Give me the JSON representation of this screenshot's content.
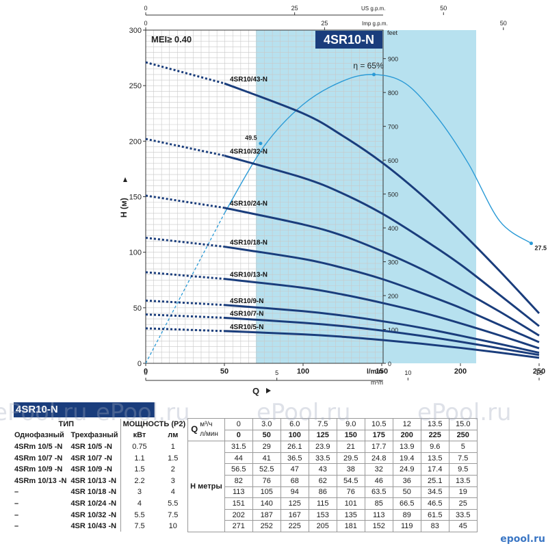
{
  "chart_data": {
    "type": "line",
    "model": "4SR10-N",
    "mei": "MEI≥ 0.40",
    "ylabel": "H (м)",
    "xlabel": "Q",
    "x_unit_lmin": "l/min",
    "x_unit_m3h": "m³/h",
    "top_unit_us": "US g.p.m.",
    "top_unit_imp": "Imp g.p.m.",
    "right_unit": "feet",
    "xlim": [
      0,
      262
    ],
    "ylim": [
      0,
      300
    ],
    "x_ticks": [
      0,
      50,
      100,
      150,
      200,
      250
    ],
    "y_ticks": [
      0,
      50,
      100,
      150,
      200,
      250,
      300
    ],
    "m3h_ticks": [
      0,
      5,
      10,
      15
    ],
    "us_ticks": [
      0,
      25,
      50
    ],
    "imp_ticks": [
      0,
      25,
      50
    ],
    "feet_ticks": [
      0,
      100,
      200,
      300,
      400,
      500,
      600,
      700,
      800,
      900
    ],
    "recommended_range": [
      70,
      210
    ],
    "x": [
      50,
      100,
      125,
      150,
      175,
      200,
      225,
      250
    ],
    "series": [
      {
        "name": "4SR10/43-N",
        "shutoff": 271,
        "values": [
          252,
          225,
          205,
          181,
          152,
          119,
          83,
          45
        ]
      },
      {
        "name": "4SR10/32-N",
        "shutoff": 202,
        "values": [
          187,
          167,
          153,
          135,
          113,
          89,
          61.5,
          33.5
        ]
      },
      {
        "name": "4SR10/24-N",
        "shutoff": 151,
        "values": [
          140,
          125,
          115,
          101,
          85,
          66.5,
          46.5,
          25
        ]
      },
      {
        "name": "4SR10/18-N",
        "shutoff": 113,
        "values": [
          105,
          94,
          86,
          76,
          63.5,
          50,
          34.5,
          19
        ]
      },
      {
        "name": "4SR10/13-N",
        "shutoff": 82,
        "values": [
          76,
          68,
          62,
          54.5,
          46,
          36,
          25.1,
          13.5
        ]
      },
      {
        "name": "4SR10/9-N",
        "shutoff": 56.5,
        "values": [
          52.5,
          47,
          43,
          38,
          32,
          24.9,
          17.4,
          9.5
        ]
      },
      {
        "name": "4SR10/7-N",
        "shutoff": 44,
        "values": [
          41,
          36.5,
          33.5,
          29.5,
          24.8,
          19.4,
          13.5,
          7.5
        ]
      },
      {
        "name": "4SR10/5-N",
        "shutoff": 31.5,
        "values": [
          29,
          26.1,
          23.9,
          21,
          17.7,
          13.9,
          9.6,
          5
        ]
      }
    ],
    "efficiency": {
      "label": "η = 65%",
      "start_label": "49.5",
      "end_label": "27.5",
      "x": [
        0,
        25,
        50,
        75,
        100,
        125,
        145,
        165,
        185,
        205,
        225,
        245
      ],
      "values": [
        0,
        65,
        135,
        195,
        233,
        254,
        260,
        252,
        222,
        180,
        128,
        108
      ]
    }
  },
  "table": {
    "title": "4SR10-N",
    "tip": "ТИП",
    "single_phase": "Однофазный",
    "three_phase": "Трехфазный",
    "power": "МОЩНОСТЬ (P2)",
    "kw": "кВт",
    "hp": "лм",
    "q": "Q",
    "q_m3h": "м³/ч",
    "q_lmin": "л/мин",
    "h_label": "H метры",
    "flow_m3h": [
      "0",
      "3.0",
      "6.0",
      "7.5",
      "9.0",
      "10.5",
      "12",
      "13.5",
      "15.0"
    ],
    "flow_lmin": [
      "0",
      "50",
      "100",
      "125",
      "150",
      "175",
      "200",
      "225",
      "250"
    ],
    "rows": [
      {
        "single": "4SRm 10/5   -N",
        "three": "4SR 10/5   -N",
        "kw": "0.75",
        "hp": "1",
        "h": [
          "31.5",
          "29",
          "26.1",
          "23.9",
          "21",
          "17.7",
          "13.9",
          "9.6",
          "5"
        ]
      },
      {
        "single": "4SRm 10/7   -N",
        "three": "4SR 10/7   -N",
        "kw": "1.1",
        "hp": "1.5",
        "h": [
          "44",
          "41",
          "36.5",
          "33.5",
          "29.5",
          "24.8",
          "19.4",
          "13.5",
          "7.5"
        ]
      },
      {
        "single": "4SRm 10/9   -N",
        "three": "4SR 10/9   -N",
        "kw": "1.5",
        "hp": "2",
        "h": [
          "56.5",
          "52.5",
          "47",
          "43",
          "38",
          "32",
          "24.9",
          "17.4",
          "9.5"
        ]
      },
      {
        "single": "4SRm 10/13 -N",
        "three": "4SR 10/13 -N",
        "kw": "2.2",
        "hp": "3",
        "h": [
          "82",
          "76",
          "68",
          "62",
          "54.5",
          "46",
          "36",
          "25.1",
          "13.5"
        ]
      },
      {
        "single": "–",
        "three": "4SR 10/18 -N",
        "kw": "3",
        "hp": "4",
        "h": [
          "113",
          "105",
          "94",
          "86",
          "76",
          "63.5",
          "50",
          "34.5",
          "19"
        ]
      },
      {
        "single": "–",
        "three": "4SR 10/24 -N",
        "kw": "4",
        "hp": "5.5",
        "h": [
          "151",
          "140",
          "125",
          "115",
          "101",
          "85",
          "66.5",
          "46.5",
          "25"
        ]
      },
      {
        "single": "–",
        "three": "4SR 10/32 -N",
        "kw": "5.5",
        "hp": "7.5",
        "h": [
          "202",
          "187",
          "167",
          "153",
          "135",
          "113",
          "89",
          "61.5",
          "33.5"
        ]
      },
      {
        "single": "–",
        "three": "4SR 10/43 -N",
        "kw": "7.5",
        "hp": "10",
        "h": [
          "271",
          "252",
          "225",
          "205",
          "181",
          "152",
          "119",
          "83",
          "45"
        ]
      }
    ]
  },
  "watermarks": [
    "ePool.ru",
    "ePool.ru",
    "ePool.ru",
    "ePool.ru",
    "ePool.ru"
  ],
  "logo": "epool.ru",
  "colors": {
    "curve": "#1a3d7c",
    "efficiency": "#2a9ad6",
    "range_fill": "#b7e1ef",
    "grid": "#c8c8c8"
  }
}
